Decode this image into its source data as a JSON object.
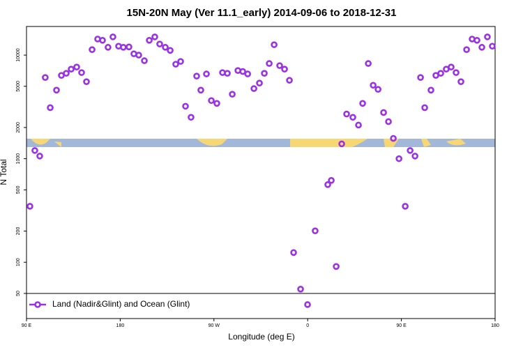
{
  "chart_data": {
    "type": "scatter",
    "title": "15N-20N May (Ver 11.1_early)   2014-09-06 to 2018-12-31",
    "x_label": "Longitude (deg E)",
    "y_label": "N Total",
    "xlim": [
      90,
      540
    ],
    "xticks": [
      {
        "value": 90,
        "label": "90 E"
      },
      {
        "value": 180,
        "label": "180"
      },
      {
        "value": 270,
        "label": "90 W"
      },
      {
        "value": 360,
        "label": "0"
      },
      {
        "value": 450,
        "label": "90 E"
      },
      {
        "value": 540,
        "label": "180"
      }
    ],
    "ylim": [
      28.6,
      18900
    ],
    "yticks": [
      50,
      100,
      200,
      500,
      1000,
      2000,
      5000,
      10000
    ],
    "log_y": true,
    "legend": "bottom-left",
    "series": [
      {
        "name": "Land (Nadir&Glint) and Ocean (Glint)",
        "color": "#9b30e6",
        "x": [
          93.3,
          98,
          102.7,
          108,
          112.8,
          118.8,
          123.5,
          128.2,
          132.9,
          138.2,
          142.9,
          147.6,
          153,
          158.3,
          163,
          168.3,
          173,
          178.4,
          183,
          188.4,
          193.1,
          197.8,
          203.2,
          207.9,
          213.2,
          217.9,
          223.3,
          228,
          233.3,
          238,
          242.7,
          248,
          253.4,
          257.4,
          262.8,
          267.5,
          272.8,
          278.2,
          282.9,
          287.6,
          293,
          297.7,
          302.4,
          308.4,
          313.7,
          318.4,
          323.1,
          327.8,
          333.1,
          337.8,
          342.5,
          346.5,
          353.2,
          359.9,
          367.2,
          379.3,
          382.7,
          387.4,
          392.7,
          397.4,
          403.4,
          408.8,
          412.8,
          418.2,
          422.9,
          427.6,
          432.9,
          437.6,
          442.3,
          447.7,
          453.7,
          458.4,
          463.1,
          468.4,
          472.4,
          478.4,
          483.1,
          487.8,
          493.1,
          497.8,
          502.5,
          507.2,
          512.6,
          517.9,
          522.6,
          527.3,
          532.6,
          537.3
        ],
        "values": [
          347,
          1200,
          1060,
          6080,
          3110,
          4590,
          6370,
          6670,
          7320,
          7670,
          6780,
          5540,
          11300,
          14300,
          13900,
          11900,
          15000,
          12200,
          11900,
          12000,
          10300,
          10000,
          8830,
          13900,
          15000,
          12800,
          11900,
          11100,
          8170,
          8690,
          3210,
          2510,
          6270,
          4590,
          6580,
          3640,
          3420,
          6780,
          6670,
          4190,
          7100,
          6950,
          6580,
          4750,
          5370,
          6670,
          8300,
          12600,
          7920,
          7320,
          5710,
          124,
          55,
          39,
          201,
          562,
          617,
          91,
          1390,
          2700,
          2510,
          2110,
          3420,
          8300,
          5120,
          4670,
          2790,
          2280,
          1570,
          1000,
          347,
          1200,
          1060,
          6080,
          3110,
          4590,
          6370,
          6670,
          7320,
          7670,
          6780,
          5540,
          11300,
          14300,
          13900,
          11900,
          15000,
          12200
        ]
      }
    ]
  }
}
